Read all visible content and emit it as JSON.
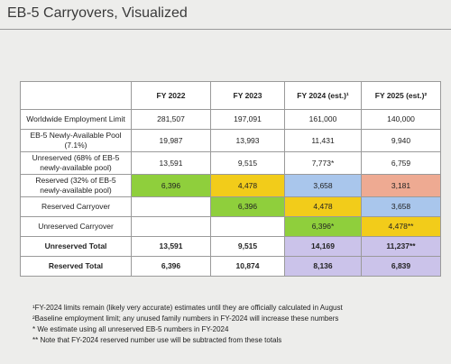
{
  "header": {
    "title": "EB-5 Carryovers, Visualized"
  },
  "table": {
    "columns": [
      null,
      "FY 2022",
      "FY 2023",
      "FY 2024 (est.)¹",
      "FY 2025 (est.)²"
    ],
    "rows": [
      [
        "Worldwide Employment Limit",
        "281,507",
        "197,091",
        "161,000",
        "140,000"
      ],
      [
        "EB-5 Newly-Available Pool (7.1%)",
        "19,987",
        "13,993",
        "11,431",
        "9,940"
      ],
      [
        "Unreserved (68% of EB-5 newly-available pool)",
        "13,591",
        "9,515",
        "7,773*",
        "6,759"
      ],
      [
        "Reserved (32% of EB-5 newly-available pool)",
        "6,396",
        "4,478",
        "3,658",
        "3,181"
      ],
      [
        "Reserved Carryover",
        null,
        "6,396",
        "4,478",
        "3,658"
      ],
      [
        "Unreserved Carryover",
        null,
        null,
        "6,396*",
        "4,478**"
      ],
      [
        "Unreserved Total",
        "13,591",
        "9,515",
        "14,169",
        "11,237**"
      ],
      [
        "Reserved Total",
        "6,396",
        "10,874",
        "8,136",
        "6,839"
      ]
    ]
  },
  "footnotes": [
    "¹FY-2024 limits remain (likely very accurate) estimates until they are officially calculated in August",
    "²Baseline employment limit; any unused family numbers in FY-2024 will increase these numbers",
    "* We estimate using all unreserved EB-5 numbers in FY-2024",
    "** Note that FY-2024 reserved number use will be subtracted from these totals"
  ]
}
